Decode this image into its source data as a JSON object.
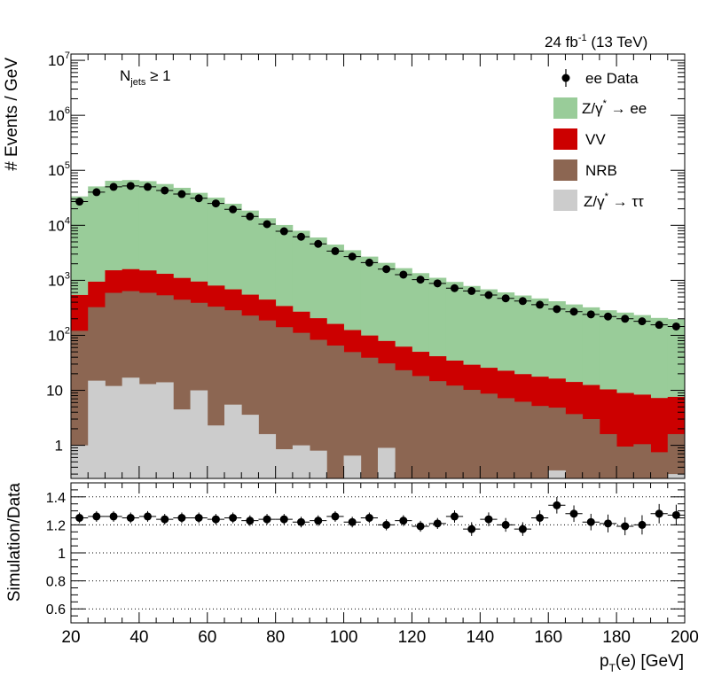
{
  "header": {
    "lumi": "24 fb",
    "lumi_exp": "-1",
    "energy": " (13 TeV)"
  },
  "selection": {
    "base": "N",
    "sub": "jets",
    "rel": " ≥ 1"
  },
  "legend": {
    "data": "ee Data",
    "zee_pre": "Z/γ",
    "zee_sup": "*",
    "zee_post": " → ee",
    "vv": "VV",
    "nrb": "NRB",
    "ztt_pre": "Z/γ",
    "ztt_sup": "*",
    "ztt_post": " → ττ"
  },
  "axes": {
    "ylabel_top": "# Events / GeV",
    "ylabel_bottom": "Simulation/Data",
    "xlabel_main": "p",
    "xlabel_sub": "T",
    "xlabel_rest": "(e) [GeV]"
  },
  "colors": {
    "zee": "#99cc99",
    "vv": "#cc0000",
    "nrb": "#8c6652",
    "ztt": "#cccccc",
    "data": "#000000"
  },
  "chart_data": [
    {
      "type": "bar",
      "stacked": true,
      "log_y": true,
      "xlim": [
        20,
        200
      ],
      "ylim": [
        0.25,
        13000000
      ],
      "x_ticks": [
        20,
        40,
        60,
        80,
        100,
        120,
        140,
        160,
        180,
        200
      ],
      "y_tick_labels": [
        {
          "value": 1,
          "base": "1",
          "exp": ""
        },
        {
          "value": 10,
          "base": "10",
          "exp": ""
        },
        {
          "value": 100,
          "base": "10",
          "exp": "2"
        },
        {
          "value": 1000,
          "base": "10",
          "exp": "3"
        },
        {
          "value": 10000,
          "base": "10",
          "exp": "4"
        },
        {
          "value": 100000,
          "base": "10",
          "exp": "5"
        },
        {
          "value": 1000000,
          "base": "10",
          "exp": "6"
        },
        {
          "value": 10000000,
          "base": "10",
          "exp": "7"
        }
      ],
      "bin_edges": [
        20,
        25,
        30,
        35,
        40,
        45,
        50,
        55,
        60,
        65,
        70,
        75,
        80,
        85,
        90,
        95,
        100,
        105,
        110,
        115,
        120,
        125,
        130,
        135,
        140,
        145,
        150,
        155,
        160,
        165,
        170,
        175,
        180,
        185,
        190,
        195,
        200
      ],
      "series": [
        {
          "name": "Z/γ* → ττ",
          "key": "ztt",
          "values": [
            1.0,
            15,
            12,
            17,
            13,
            14,
            4.5,
            10,
            2.3,
            5.5,
            3.6,
            1.6,
            0.85,
            1.0,
            0.8,
            0.2,
            0.65,
            0.2,
            0.9,
            0.2,
            0.2,
            0.2,
            0.2,
            0.2,
            0.2,
            0.2,
            0.2,
            0.2,
            0.35,
            0.2,
            0.2,
            0.2,
            0.2,
            0.2,
            0.2,
            0.3
          ]
        },
        {
          "name": "NRB",
          "key": "nrb",
          "values": [
            120,
            310,
            580,
            620,
            580,
            520,
            440,
            380,
            330,
            280,
            225,
            185,
            140,
            110,
            82,
            65,
            49,
            39,
            30,
            23,
            18,
            14.5,
            12,
            10,
            8.5,
            7,
            6,
            5,
            4.5,
            3.5,
            2.8,
            1.4,
            0.75,
            0.85,
            0.55,
            1.3
          ]
        },
        {
          "name": "VV",
          "key": "vv",
          "values": [
            420,
            620,
            930,
            960,
            920,
            780,
            660,
            560,
            470,
            400,
            320,
            260,
            200,
            158,
            122,
            96,
            75,
            60,
            48,
            39,
            32,
            27,
            22.5,
            19,
            17,
            15.5,
            13.5,
            12.5,
            11.5,
            10.5,
            9.5,
            8.8,
            8,
            7.3,
            6.5,
            6
          ]
        },
        {
          "name": "Z/γ* → ee",
          "key": "zee",
          "values": [
            33000,
            50000,
            63000,
            65000,
            62000,
            55000,
            47000,
            38000,
            31000,
            24000,
            18000,
            13000,
            9800,
            7700,
            5800,
            4300,
            3400,
            2600,
            2000,
            1600,
            1300,
            1070,
            900,
            760,
            660,
            580,
            510,
            450,
            400,
            350,
            310,
            275,
            250,
            225,
            200,
            190
          ]
        }
      ],
      "data_points": {
        "name": "ee Data",
        "x": [
          22.5,
          27.5,
          32.5,
          37.5,
          42.5,
          47.5,
          52.5,
          57.5,
          62.5,
          67.5,
          72.5,
          77.5,
          82.5,
          87.5,
          92.5,
          97.5,
          102.5,
          107.5,
          112.5,
          117.5,
          122.5,
          127.5,
          132.5,
          137.5,
          142.5,
          147.5,
          152.5,
          157.5,
          162.5,
          167.5,
          172.5,
          177.5,
          182.5,
          187.5,
          192.5,
          197.5
        ],
        "y": [
          27000,
          40000,
          50000,
          52000,
          50000,
          43000,
          37000,
          31000,
          25000,
          19500,
          14500,
          10500,
          7800,
          6200,
          4600,
          3400,
          2700,
          2100,
          1600,
          1270,
          1030,
          880,
          720,
          640,
          540,
          470,
          420,
          360,
          300,
          270,
          240,
          220,
          200,
          180,
          155,
          145
        ]
      }
    },
    {
      "type": "scatter",
      "xlim": [
        20,
        200
      ],
      "ylim": [
        0.5,
        1.5
      ],
      "x_ticks": [
        20,
        40,
        60,
        80,
        100,
        120,
        140,
        160,
        180,
        200
      ],
      "y_ticks": [
        0.6,
        0.8,
        1.0,
        1.2,
        1.4
      ],
      "y_tick_labels": [
        "0.6",
        "0.8",
        "1",
        "1.2",
        "1.4"
      ],
      "gridlines_y": [
        0.6,
        0.8,
        1.0,
        1.2,
        1.4
      ],
      "x_ticklabels": [
        "20",
        "40",
        "60",
        "80",
        "100",
        "120",
        "140",
        "160",
        "180",
        "200"
      ],
      "x": [
        22.5,
        27.5,
        32.5,
        37.5,
        42.5,
        47.5,
        52.5,
        57.5,
        62.5,
        67.5,
        72.5,
        77.5,
        82.5,
        87.5,
        92.5,
        97.5,
        102.5,
        107.5,
        112.5,
        117.5,
        122.5,
        127.5,
        132.5,
        137.5,
        142.5,
        147.5,
        152.5,
        157.5,
        162.5,
        167.5,
        172.5,
        177.5,
        182.5,
        187.5,
        192.5,
        197.5
      ],
      "y": [
        1.25,
        1.26,
        1.26,
        1.25,
        1.26,
        1.24,
        1.25,
        1.25,
        1.24,
        1.25,
        1.23,
        1.24,
        1.24,
        1.22,
        1.23,
        1.26,
        1.22,
        1.25,
        1.2,
        1.23,
        1.19,
        1.21,
        1.26,
        1.17,
        1.24,
        1.2,
        1.17,
        1.25,
        1.34,
        1.28,
        1.22,
        1.21,
        1.19,
        1.2,
        1.28,
        1.27
      ],
      "yerr": [
        0.01,
        0.01,
        0.01,
        0.01,
        0.01,
        0.01,
        0.01,
        0.01,
        0.01,
        0.01,
        0.01,
        0.01,
        0.01,
        0.01,
        0.015,
        0.015,
        0.015,
        0.015,
        0.02,
        0.02,
        0.02,
        0.02,
        0.025,
        0.03,
        0.03,
        0.03,
        0.03,
        0.035,
        0.04,
        0.04,
        0.04,
        0.045,
        0.045,
        0.05,
        0.05,
        0.055
      ]
    }
  ]
}
